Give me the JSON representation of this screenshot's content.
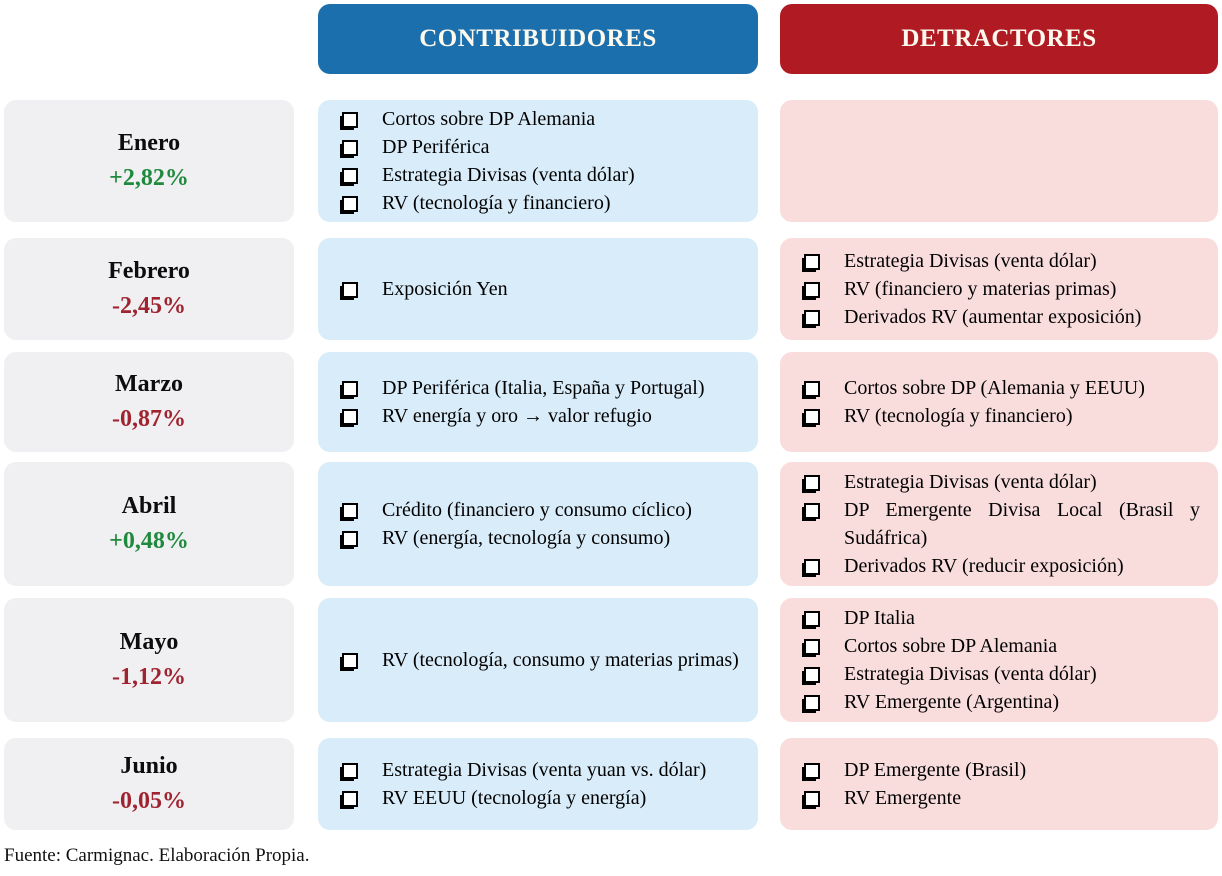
{
  "headers": {
    "contribuidores": "CONTRIBUIDORES",
    "detractores": "DETRACTORES"
  },
  "colors": {
    "contribuidores_header_bg": "#1b6fad",
    "detractores_header_bg": "#b01b23",
    "contribuidores_box_bg": "#d9ecf9",
    "detractores_box_bg": "#f9dddd",
    "month_box_bg": "#f0f0f3",
    "positive_pct": "#1f8a3d",
    "negative_pct": "#9f2430"
  },
  "rows": [
    {
      "month": "Enero",
      "pct": "+2,82%",
      "contribuidores": [
        "Cortos sobre DP Alemania",
        "DP Periférica",
        "Estrategia Divisas (venta dólar)",
        "RV (tecnología y financiero)"
      ],
      "detractores": []
    },
    {
      "month": "Febrero",
      "pct": "-2,45%",
      "contribuidores": [
        "Exposición Yen"
      ],
      "detractores": [
        "Estrategia Divisas (venta dólar)",
        "RV (financiero y materias primas)",
        "Derivados RV (aumentar exposición)"
      ]
    },
    {
      "month": "Marzo",
      "pct": "-0,87%",
      "contribuidores": [
        "DP Periférica (Italia, España y Portugal)",
        "RV energía y oro → valor refugio"
      ],
      "detractores": [
        "Cortos sobre DP (Alemania y EEUU)",
        "RV (tecnología y financiero)"
      ]
    },
    {
      "month": "Abril",
      "pct": "+0,48%",
      "contribuidores": [
        "Crédito (financiero y consumo cíclico)",
        "RV (energía, tecnología y consumo)"
      ],
      "detractores": [
        "Estrategia Divisas (venta dólar)",
        "DP Emergente Divisa Local (Brasil y Sudáfrica)",
        "Derivados RV (reducir exposición)"
      ]
    },
    {
      "month": "Mayo",
      "pct": "-1,12%",
      "contribuidores": [
        "RV (tecnología, consumo y materias primas)"
      ],
      "detractores": [
        "DP Italia",
        "Cortos sobre DP Alemania",
        "Estrategia Divisas (venta dólar)",
        "RV Emergente (Argentina)"
      ]
    },
    {
      "month": "Junio",
      "pct": "-0,05%",
      "contribuidores": [
        "Estrategia Divisas (venta yuan vs. dólar)",
        "RV EEUU (tecnología y energía)"
      ],
      "detractores": [
        "DP Emergente (Brasil)",
        "RV Emergente"
      ]
    }
  ],
  "footer": {
    "source": "Fuente: Carmignac. Elaboración Propia."
  }
}
